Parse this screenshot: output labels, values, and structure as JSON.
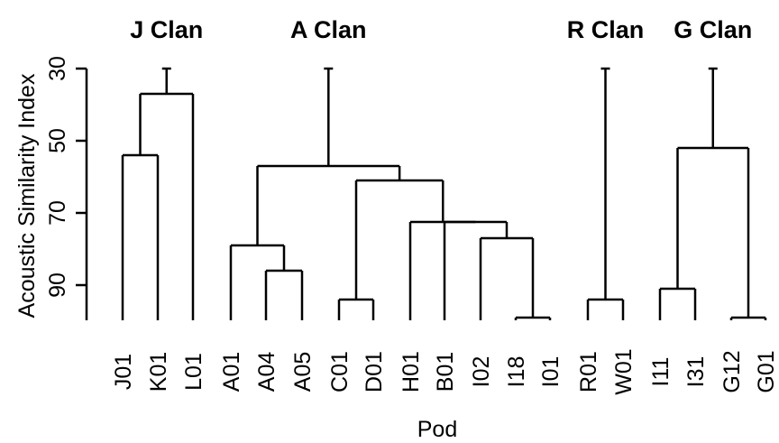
{
  "chart_data": {
    "type": "dendrogram",
    "xlabel": "Pod",
    "ylabel": "Acoustic Similarity Index",
    "y_ticks": [
      30,
      50,
      70,
      90
    ],
    "ylim": [
      30,
      100
    ],
    "y_axis_inverted": true,
    "leaves": [
      "J01",
      "K01",
      "L01",
      "A01",
      "A04",
      "A05",
      "C01",
      "D01",
      "H01",
      "B01",
      "I02",
      "I18",
      "I01",
      "R01",
      "W01",
      "I11",
      "I31",
      "G12",
      "G01"
    ],
    "clans": [
      {
        "name": "J Clan",
        "leaves": [
          "J01",
          "K01",
          "L01"
        ],
        "root_height": 30
      },
      {
        "name": "A Clan",
        "leaves": [
          "A01",
          "A04",
          "A05",
          "C01",
          "D01",
          "H01",
          "B01",
          "I02",
          "I18",
          "I01"
        ],
        "root_height": 30
      },
      {
        "name": "R Clan",
        "leaves": [
          "R01",
          "W01"
        ],
        "root_height": 30
      },
      {
        "name": "G Clan",
        "leaves": [
          "I11",
          "I31",
          "G12",
          "G01"
        ],
        "root_height": 30
      }
    ],
    "merges": [
      {
        "id": "m1",
        "left": "J01",
        "right": "K01",
        "height": 54
      },
      {
        "id": "m2",
        "left": "m1",
        "right": "L01",
        "height": 37
      },
      {
        "id": "m3",
        "left": "A04",
        "right": "A05",
        "height": 86
      },
      {
        "id": "m4",
        "left": "A01",
        "right": "m3",
        "height": 79
      },
      {
        "id": "m5",
        "left": "C01",
        "right": "D01",
        "height": 94
      },
      {
        "id": "m6",
        "left": "I18",
        "right": "I01",
        "height": 99
      },
      {
        "id": "m7",
        "left": "I02",
        "right": "m6",
        "height": 77
      },
      {
        "id": "m8",
        "left": "B01",
        "right": "m7",
        "height": 72.5
      },
      {
        "id": "m9",
        "left": "H01",
        "right": "m8",
        "height": 72.5
      },
      {
        "id": "m10",
        "left": "m5",
        "right": "m9",
        "height": 61
      },
      {
        "id": "m11",
        "left": "m4",
        "right": "m10",
        "height": 57
      },
      {
        "id": "m12",
        "left": "R01",
        "right": "W01",
        "height": 94
      },
      {
        "id": "m13",
        "left": "I11",
        "right": "I31",
        "height": 91
      },
      {
        "id": "m14",
        "left": "G12",
        "right": "G01",
        "height": 99
      },
      {
        "id": "m15",
        "left": "m13",
        "right": "m14",
        "height": 52
      }
    ]
  }
}
